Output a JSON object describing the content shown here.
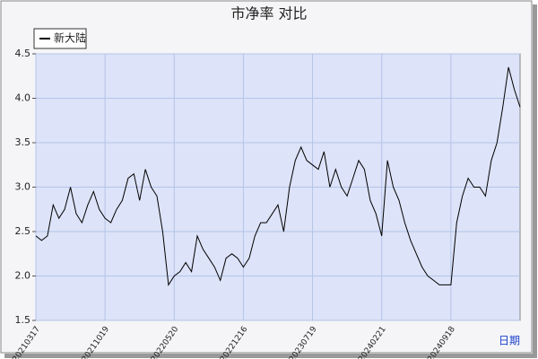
{
  "chart_data": {
    "type": "line",
    "title": "市净率  对比",
    "x_label": "日期",
    "categories": [
      "20210317",
      null,
      null,
      null,
      null,
      null,
      null,
      null,
      null,
      null,
      null,
      null,
      "20211019",
      null,
      null,
      null,
      null,
      null,
      null,
      null,
      null,
      null,
      null,
      null,
      "20220520",
      null,
      null,
      null,
      null,
      null,
      null,
      null,
      null,
      null,
      null,
      null,
      "20221216",
      null,
      null,
      null,
      null,
      null,
      null,
      null,
      null,
      null,
      null,
      null,
      "20230719",
      null,
      null,
      null,
      null,
      null,
      null,
      null,
      null,
      null,
      null,
      null,
      "20240221",
      null,
      null,
      null,
      null,
      null,
      null,
      null,
      null,
      null,
      null,
      null,
      "20240918",
      null,
      null,
      null,
      null,
      null,
      null,
      null,
      null,
      null,
      null,
      null,
      null
    ],
    "series": [
      {
        "name": "新大陆",
        "color": "#000000",
        "values": [
          2.45,
          2.4,
          2.45,
          2.8,
          2.65,
          2.75,
          3.0,
          2.7,
          2.6,
          2.8,
          2.95,
          2.75,
          2.65,
          2.6,
          2.75,
          2.85,
          3.1,
          3.15,
          2.85,
          3.2,
          3.0,
          2.9,
          2.5,
          1.9,
          2.0,
          2.05,
          2.15,
          2.05,
          2.45,
          2.3,
          2.2,
          2.1,
          1.95,
          2.2,
          2.25,
          2.2,
          2.1,
          2.2,
          2.45,
          2.6,
          2.6,
          2.7,
          2.8,
          2.5,
          3.0,
          3.3,
          3.45,
          3.3,
          3.25,
          3.2,
          3.4,
          3.0,
          3.2,
          3.0,
          2.9,
          3.1,
          3.3,
          3.2,
          2.85,
          2.7,
          2.45,
          3.3,
          3.0,
          2.85,
          2.6,
          2.4,
          2.25,
          2.1,
          2.0,
          1.95,
          1.9,
          1.9,
          1.9,
          2.6,
          2.9,
          3.1,
          3.0,
          3.0,
          2.9,
          3.3,
          3.5,
          3.9,
          4.35,
          4.1,
          3.9
        ]
      }
    ],
    "ylim": [
      1.5,
      4.5
    ],
    "yticks": [
      1.5,
      {
        "value": 2,
        "label": "2.0"
      },
      2.5,
      {
        "value": 3,
        "label": "3.0"
      },
      3.5,
      {
        "value": 4,
        "label": "4.0"
      },
      4.5
    ],
    "grid": true,
    "legend": "top-left"
  }
}
